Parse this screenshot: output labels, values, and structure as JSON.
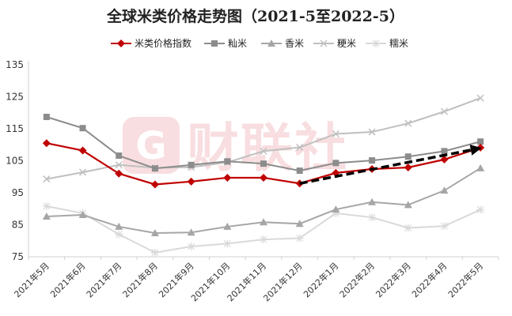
{
  "chart_data": {
    "type": "line",
    "title": "全球米类价格走势图（2021-5至2022-5）",
    "categories": [
      "2021年5月",
      "2021年6月",
      "2021年7月",
      "2021年8月",
      "2021年9月",
      "2021年10月",
      "2021年11月",
      "2021年12月",
      "2022年1月",
      "2022年2月",
      "2022年3月",
      "2022年4月",
      "2022年5月"
    ],
    "ylim": [
      75,
      135
    ],
    "yticks": [
      75,
      85,
      95,
      105,
      115,
      125,
      135
    ],
    "grid": false,
    "legend_position": "top",
    "series": [
      {
        "name": "米类价格指数",
        "color": "#c00000",
        "marker": "diamond",
        "values": [
          110.5,
          108.2,
          101.0,
          97.6,
          98.5,
          99.7,
          99.7,
          97.9,
          101.2,
          102.4,
          102.9,
          105.4,
          109.1
        ]
      },
      {
        "name": "籼米",
        "color": "#8c8c8c",
        "marker": "square",
        "values": [
          118.7,
          115.2,
          106.6,
          102.6,
          103.7,
          104.8,
          104.1,
          101.9,
          104.3,
          105.1,
          106.3,
          108.0,
          111.0
        ]
      },
      {
        "name": "香米",
        "color": "#a6a6a6",
        "marker": "triangle",
        "values": [
          87.6,
          88.1,
          84.4,
          82.4,
          82.6,
          84.4,
          85.8,
          85.3,
          89.8,
          92.1,
          91.2,
          95.7,
          102.7
        ]
      },
      {
        "name": "粳米",
        "color": "#bfbfbf",
        "marker": "x",
        "values": [
          99.3,
          101.4,
          103.7,
          102.8,
          103.0,
          104.5,
          108.0,
          109.2,
          113.4,
          114.0,
          116.7,
          120.4,
          124.6
        ]
      },
      {
        "name": "糯米",
        "color": "#d9d9d9",
        "marker": "star",
        "values": [
          90.8,
          88.6,
          82.0,
          76.3,
          78.2,
          79.1,
          80.4,
          80.8,
          88.6,
          87.3,
          84.0,
          84.6,
          89.7
        ]
      }
    ],
    "annotation": {
      "type": "dashed-arrow",
      "color": "#000000",
      "from": {
        "x": "2021年12月",
        "y": 97.9
      },
      "to": {
        "x": "2022年5月",
        "y": 109.0
      }
    },
    "watermark": "财联社"
  }
}
